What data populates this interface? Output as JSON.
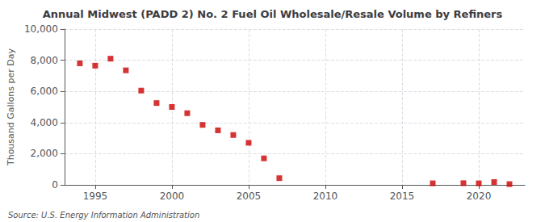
{
  "chart_data": {
    "type": "scatter",
    "title": "Annual Midwest (PADD 2) No. 2 Fuel Oil Wholesale/Resale Volume by Refiners",
    "ylabel": "Thousand Gallons per Day",
    "annotations": [
      "Source: U.S. Energy Information Administration"
    ],
    "x": [
      1994,
      1995,
      1996,
      1997,
      1998,
      1999,
      2000,
      2001,
      2002,
      2003,
      2004,
      2005,
      2006,
      2007,
      2017,
      2019,
      2020,
      2021,
      2022
    ],
    "values": [
      7800,
      7650,
      8100,
      7350,
      6050,
      5250,
      5000,
      4600,
      3850,
      3500,
      3200,
      2700,
      1700,
      430,
      100,
      110,
      100,
      180,
      50
    ],
    "color": "#cc0000",
    "marker": "square",
    "xlim": [
      1993,
      2023
    ],
    "xticks": [
      1995,
      2000,
      2005,
      2010,
      2015,
      2020
    ],
    "ylim": [
      0,
      10000
    ],
    "yticks": [
      0,
      {
        "value": 2000,
        "label": "2,000"
      },
      {
        "value": 4000,
        "label": "4,000"
      },
      {
        "value": 6000,
        "label": "6,000"
      },
      {
        "value": 8000,
        "label": "8,000"
      },
      {
        "value": 10000,
        "label": "10,000"
      }
    ],
    "grid": true
  }
}
